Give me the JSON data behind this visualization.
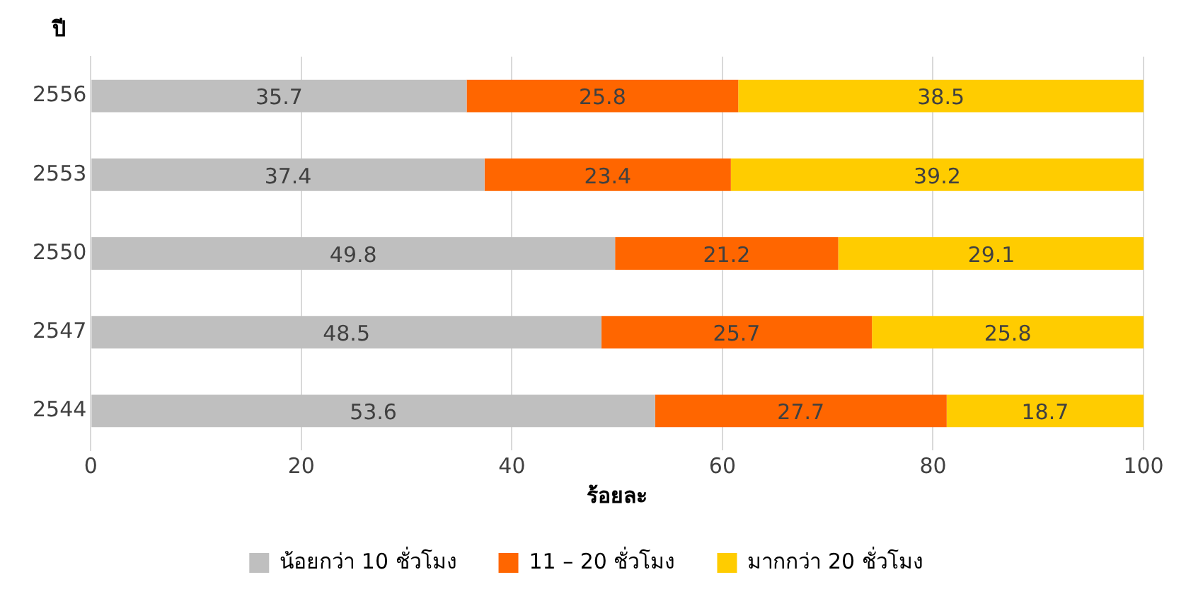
{
  "chart_data": {
    "type": "bar",
    "orientation": "horizontal",
    "stacked": true,
    "ylabel": "ปี",
    "xlabel": "ร้อยละ",
    "categories": [
      "2556",
      "2553",
      "2550",
      "2547",
      "2544"
    ],
    "series": [
      {
        "name": "น้อยกว่า 10 ชั่วโมง",
        "color": "#bfbfbf",
        "values": [
          35.7,
          37.4,
          49.8,
          48.5,
          53.6
        ]
      },
      {
        "name": "11 – 20 ชั่วโมง",
        "color": "#ff6600",
        "values": [
          25.8,
          23.4,
          21.2,
          25.7,
          27.7
        ]
      },
      {
        "name": "มากกว่า 20 ชั่วโมง",
        "color": "#ffcc00",
        "values": [
          38.5,
          39.2,
          29.1,
          25.8,
          18.7
        ]
      }
    ],
    "xlim": [
      0,
      100
    ],
    "xticks": [
      0,
      20,
      40,
      60,
      80,
      100
    ],
    "grid": "x",
    "legend": "bottom",
    "data_labels": true
  }
}
